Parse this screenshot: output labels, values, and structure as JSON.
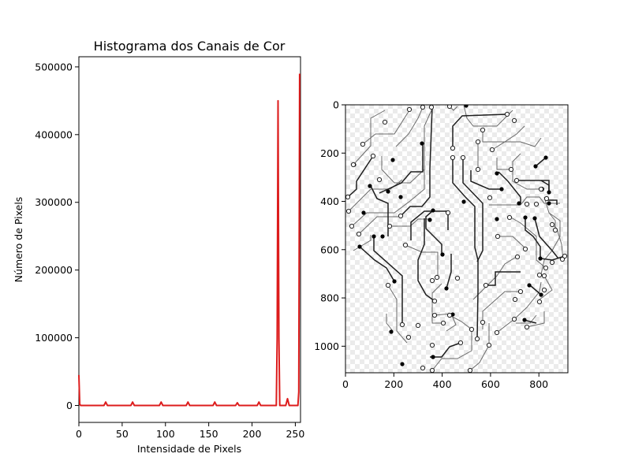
{
  "chart_data": [
    {
      "type": "line",
      "title": "Histograma dos Canais de Cor",
      "xlabel": "Intensidade de Pixels",
      "ylabel": "Número de Pixels",
      "xlim": [
        0,
        256
      ],
      "ylim": [
        -25000,
        515000
      ],
      "xticks": [
        0,
        50,
        100,
        150,
        200,
        250
      ],
      "yticks": [
        0,
        100000,
        200000,
        300000,
        400000,
        500000
      ],
      "grid": false,
      "legend": "none",
      "colors": {
        "series": "#dd1c1c"
      },
      "series": [
        {
          "x": [
            0,
            1,
            2,
            29,
            31,
            33,
            60,
            62,
            64,
            93,
            95,
            97,
            124,
            126,
            128,
            155,
            157,
            159,
            181,
            183,
            185,
            206,
            208,
            210,
            228,
            229,
            230,
            231,
            232,
            239,
            240,
            241,
            242,
            243,
            253,
            254,
            255
          ],
          "values": [
            45000,
            2000,
            0,
            0,
            5000,
            0,
            0,
            5000,
            0,
            0,
            5000,
            0,
            0,
            5000,
            0,
            0,
            5000,
            0,
            0,
            4000,
            0,
            0,
            5000,
            0,
            0,
            100000,
            450000,
            100000,
            0,
            0,
            5000,
            10000,
            5000,
            0,
            0,
            20000,
            490000
          ]
        }
      ]
    },
    {
      "type": "image",
      "title": "",
      "xlim": [
        0,
        920
      ],
      "ylim": [
        1110,
        0
      ],
      "xticks": [
        0,
        200,
        400,
        600,
        800
      ],
      "yticks": [
        0,
        200,
        400,
        600,
        800,
        1000
      ]
    }
  ]
}
